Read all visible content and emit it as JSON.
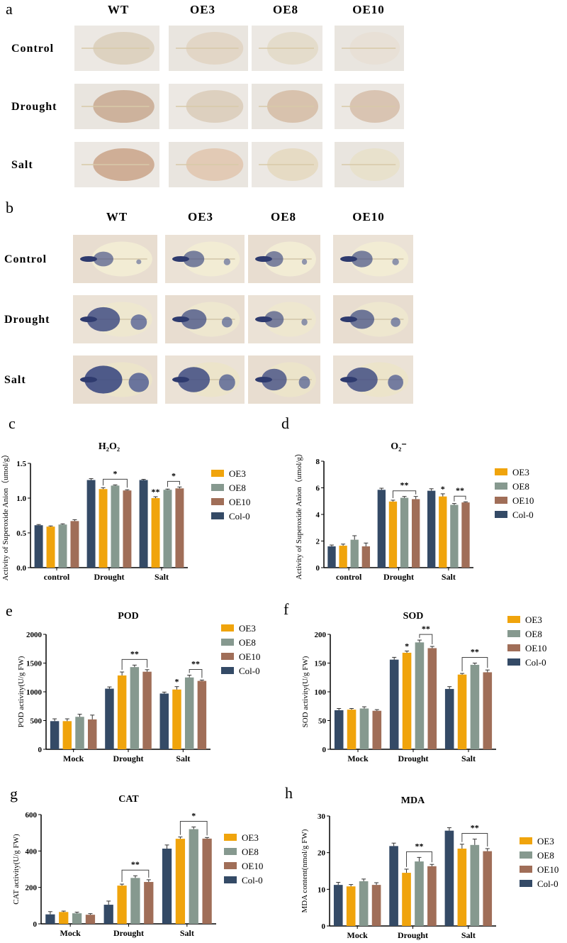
{
  "photo_panels": {
    "a": {
      "label": "a",
      "columns": [
        "WT",
        "OE3",
        "OE8",
        "OE10"
      ],
      "rows": [
        "Control",
        "Drought",
        "Salt"
      ]
    },
    "b": {
      "label": "b",
      "columns": [
        "WT",
        "OE3",
        "OE8",
        "OE10"
      ],
      "rows": [
        "Control",
        "Drought",
        "Salt"
      ]
    }
  },
  "colors": {
    "Col-0": "#344a66",
    "OE3": "#f0a40c",
    "OE8": "#86998f",
    "OE10": "#a06e58"
  },
  "chart_data": [
    {
      "panel": "c",
      "type": "bar",
      "title": "H₂O₂",
      "ylabel": "Activity of Superoxide Anion（umol/g）",
      "categories": [
        "control",
        "Drought",
        "Salt"
      ],
      "ylim": [
        0,
        1.5
      ],
      "yticks": [
        "0.0",
        "0.5",
        "1.0",
        "1.5"
      ],
      "legend": [
        "OE3",
        "OE8",
        "OE10",
        "Col-0"
      ],
      "legend_position": "right",
      "series": [
        {
          "name": "Col-0",
          "values": [
            0.61,
            1.26,
            1.26
          ],
          "errors": [
            0.01,
            0.02,
            0.01
          ]
        },
        {
          "name": "OE3",
          "values": [
            0.59,
            1.13,
            1.0
          ],
          "errors": [
            0.01,
            0.02,
            0.02
          ]
        },
        {
          "name": "OE8",
          "values": [
            0.62,
            1.18,
            1.12
          ],
          "errors": [
            0.01,
            0.01,
            0.01
          ]
        },
        {
          "name": "OE10",
          "values": [
            0.67,
            1.11,
            1.14
          ],
          "errors": [
            0.02,
            0.01,
            0.02
          ]
        }
      ],
      "annotations": [
        {
          "category": 1,
          "from": 1,
          "to": 3,
          "label": "*"
        },
        {
          "category": 2,
          "from": 1,
          "to": 1,
          "label": "**"
        },
        {
          "category": 2,
          "from": 2,
          "to": 3,
          "label": "*"
        }
      ]
    },
    {
      "panel": "d",
      "type": "bar",
      "title": "O₂⁻",
      "ylabel": "Activity of Superoxide Anion（umol/g）",
      "categories": [
        "control",
        "Drought",
        "Salt"
      ],
      "ylim": [
        0,
        8
      ],
      "yticks": [
        "0",
        "2",
        "4",
        "6",
        "8"
      ],
      "legend": [
        "OE3",
        "OE8",
        "OE10",
        "Col-0"
      ],
      "legend_position": "right",
      "series": [
        {
          "name": "Col-0",
          "values": [
            1.6,
            5.85,
            5.78
          ],
          "errors": [
            0.1,
            0.12,
            0.15
          ]
        },
        {
          "name": "OE3",
          "values": [
            1.65,
            4.97,
            5.35
          ],
          "errors": [
            0.12,
            0.1,
            0.2
          ]
        },
        {
          "name": "OE8",
          "values": [
            2.1,
            5.25,
            4.72
          ],
          "errors": [
            0.3,
            0.1,
            0.1
          ]
        },
        {
          "name": "OE10",
          "values": [
            1.6,
            5.15,
            4.9
          ],
          "errors": [
            0.25,
            0.2,
            0.05
          ]
        }
      ],
      "annotations": [
        {
          "category": 1,
          "from": 1,
          "to": 3,
          "label": "**"
        },
        {
          "category": 2,
          "from": 1,
          "to": 1,
          "label": "*"
        },
        {
          "category": 2,
          "from": 2,
          "to": 3,
          "label": "**"
        }
      ]
    },
    {
      "panel": "e",
      "type": "bar",
      "title": "POD",
      "ylabel": "POD activity(U/g FW)",
      "categories": [
        "Mock",
        "Drought",
        "Salt"
      ],
      "ylim": [
        0,
        2000
      ],
      "yticks": [
        "0",
        "500",
        "1000",
        "1500",
        "2000"
      ],
      "legend": [
        "OE3",
        "OE8",
        "OE10",
        "Col-0"
      ],
      "legend_position": "right",
      "series": [
        {
          "name": "Col-0",
          "values": [
            490,
            1055,
            970
          ],
          "errors": [
            40,
            30,
            25
          ]
        },
        {
          "name": "OE3",
          "values": [
            490,
            1285,
            1040
          ],
          "errors": [
            40,
            60,
            50
          ]
        },
        {
          "name": "OE8",
          "values": [
            565,
            1430,
            1250
          ],
          "errors": [
            45,
            35,
            40
          ]
        },
        {
          "name": "OE10",
          "values": [
            520,
            1350,
            1190
          ],
          "errors": [
            75,
            35,
            15
          ]
        }
      ],
      "annotations": [
        {
          "category": 1,
          "from": 1,
          "to": 3,
          "label": "**"
        },
        {
          "category": 2,
          "from": 1,
          "to": 1,
          "label": "*"
        },
        {
          "category": 2,
          "from": 2,
          "to": 3,
          "label": "**"
        }
      ]
    },
    {
      "panel": "f",
      "type": "bar",
      "title": "SOD",
      "ylabel": "SOD activity(U/g FW)",
      "categories": [
        "Mock",
        "Drought",
        "Salt"
      ],
      "ylim": [
        0,
        200
      ],
      "yticks": [
        "0",
        "50",
        "100",
        "150",
        "200"
      ],
      "legend": [
        "OE3",
        "OE8",
        "OE10",
        "Col-0"
      ],
      "legend_position": "right",
      "series": [
        {
          "name": "Col-0",
          "values": [
            68,
            156,
            105
          ],
          "errors": [
            3,
            4,
            4
          ]
        },
        {
          "name": "OE3",
          "values": [
            69,
            168,
            130
          ],
          "errors": [
            2,
            3,
            2
          ]
        },
        {
          "name": "OE8",
          "values": [
            71,
            186,
            147
          ],
          "errors": [
            3,
            4,
            3
          ]
        },
        {
          "name": "OE10",
          "values": [
            67,
            176,
            134
          ],
          "errors": [
            2,
            3,
            4
          ]
        }
      ],
      "annotations": [
        {
          "category": 1,
          "from": 1,
          "to": 1,
          "label": "*"
        },
        {
          "category": 1,
          "from": 2,
          "to": 3,
          "label": "**"
        },
        {
          "category": 2,
          "from": 1,
          "to": 3,
          "label": "**"
        }
      ]
    },
    {
      "panel": "g",
      "type": "bar",
      "title": "CAT",
      "ylabel": "CAT activity(U/g FW)",
      "categories": [
        "Mock",
        "Drought",
        "Salt"
      ],
      "ylim": [
        0,
        600
      ],
      "yticks": [
        "0",
        "200",
        "400",
        "600"
      ],
      "legend": [
        "OE3",
        "OE8",
        "OE10",
        "Col-0"
      ],
      "legend_position": "right",
      "series": [
        {
          "name": "Col-0",
          "values": [
            52,
            105,
            413
          ],
          "errors": [
            15,
            20,
            20
          ]
        },
        {
          "name": "OE3",
          "values": [
            65,
            210,
            467
          ],
          "errors": [
            5,
            8,
            10
          ]
        },
        {
          "name": "OE8",
          "values": [
            58,
            252,
            520
          ],
          "errors": [
            6,
            12,
            12
          ]
        },
        {
          "name": "OE10",
          "values": [
            50,
            230,
            468
          ],
          "errors": [
            6,
            12,
            6
          ]
        }
      ],
      "annotations": [
        {
          "category": 1,
          "from": 1,
          "to": 3,
          "label": "**"
        },
        {
          "category": 2,
          "from": 1,
          "to": 3,
          "label": "*"
        }
      ]
    },
    {
      "panel": "h",
      "type": "bar",
      "title": "MDA",
      "ylabel": "MDA content(nmol/g FW)",
      "categories": [
        "Mock",
        "Drought",
        "Salt"
      ],
      "ylim": [
        0,
        30
      ],
      "yticks": [
        "0",
        "10",
        "20",
        "30"
      ],
      "legend": [
        "OE3",
        "OE8",
        "OE10",
        "Col-0"
      ],
      "legend_position": "right",
      "series": [
        {
          "name": "Col-0",
          "values": [
            11.2,
            21.8,
            26.0
          ],
          "errors": [
            0.7,
            0.8,
            0.8
          ]
        },
        {
          "name": "OE3",
          "values": [
            10.8,
            14.5,
            21.1
          ],
          "errors": [
            0.5,
            1.0,
            1.2
          ]
        },
        {
          "name": "OE8",
          "values": [
            12.2,
            17.6,
            22.1
          ],
          "errors": [
            0.6,
            1.1,
            1.6
          ]
        },
        {
          "name": "OE10",
          "values": [
            11.2,
            16.3,
            20.4
          ],
          "errors": [
            0.6,
            0.5,
            0.7
          ]
        }
      ],
      "annotations": [
        {
          "category": 1,
          "from": 1,
          "to": 3,
          "label": "**"
        },
        {
          "category": 2,
          "from": 1,
          "to": 3,
          "label": "**"
        }
      ]
    }
  ]
}
